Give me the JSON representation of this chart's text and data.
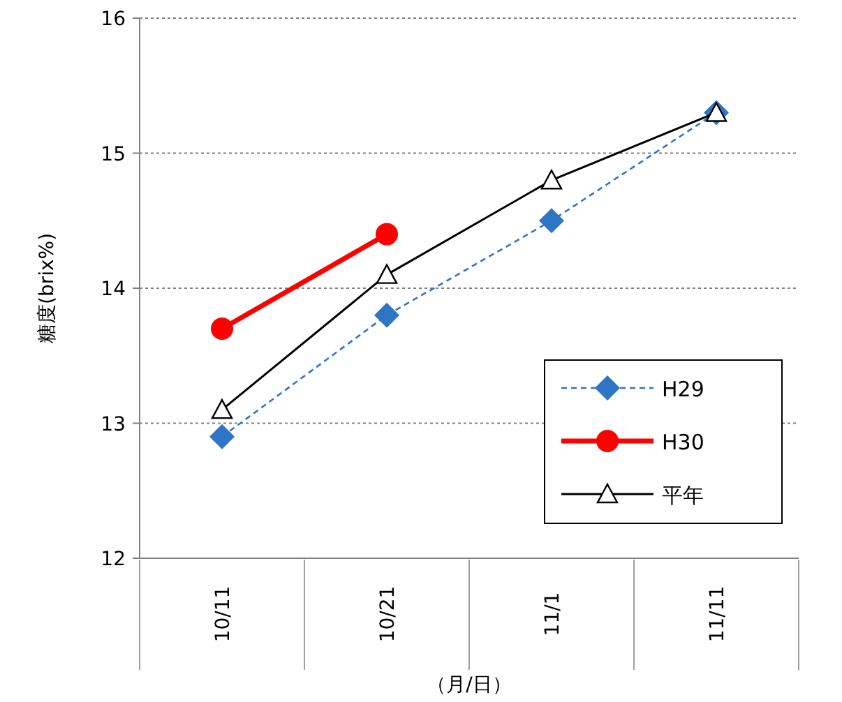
{
  "chart_data": {
    "type": "line",
    "ylabel": "糖度(brix%)",
    "xlabel": "（月/日）",
    "categories": [
      "10/11",
      "10/21",
      "11/1",
      "11/11"
    ],
    "ylim": [
      12,
      16
    ],
    "yticks": [
      12,
      13,
      14,
      15,
      16
    ],
    "grid": "y",
    "legend": "bottom right",
    "series": [
      {
        "name": "H29",
        "color": "#2e75c6",
        "values": [
          12.9,
          13.8,
          14.5,
          15.3
        ],
        "marker": "diamond",
        "line_style": "dashed"
      },
      {
        "name": "H30",
        "color": "#ff0000",
        "values": [
          13.7,
          14.4,
          null,
          null
        ],
        "marker": "circle",
        "line_style": "solid"
      },
      {
        "name": "平年",
        "color": "#000000",
        "values": [
          13.1,
          14.1,
          14.8,
          15.3
        ],
        "marker": "triangle",
        "line_style": "solid"
      }
    ]
  }
}
